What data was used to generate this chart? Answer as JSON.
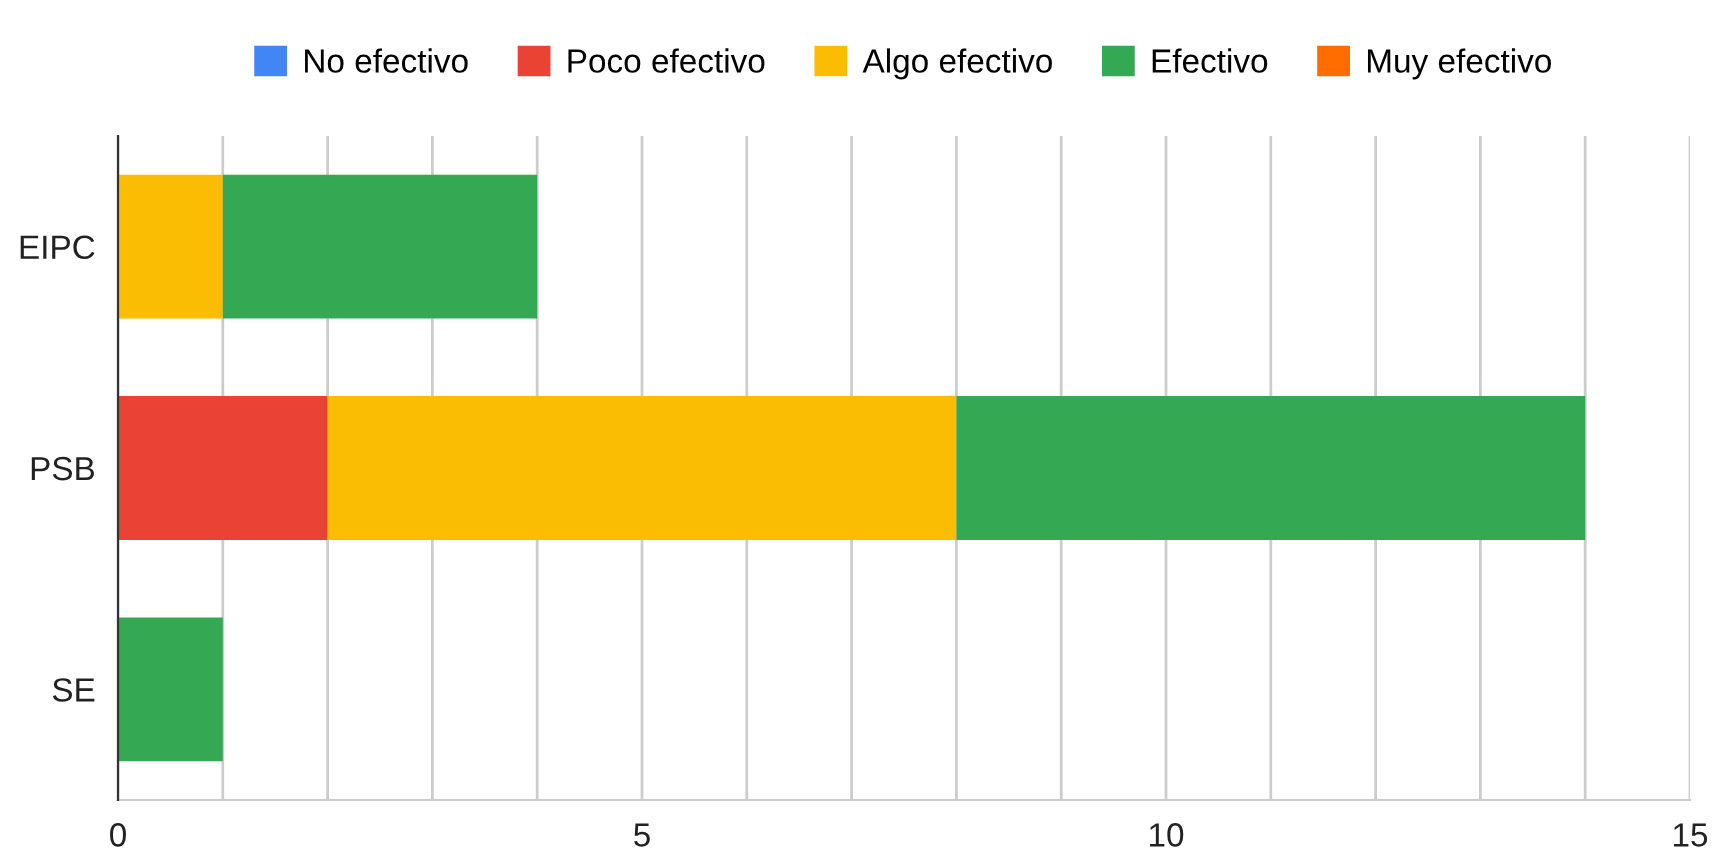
{
  "chart_data": {
    "type": "bar",
    "orientation": "horizontal",
    "stacked": true,
    "categories": [
      "EIPC",
      "PSB",
      "SE"
    ],
    "series": [
      {
        "name": "No efectivo",
        "color": "#4285f4",
        "values": [
          0,
          0,
          0
        ]
      },
      {
        "name": "Poco efectivo",
        "color": "#ea4335",
        "values": [
          0,
          2,
          0
        ]
      },
      {
        "name": "Algo efectivo",
        "color": "#fbbc04",
        "values": [
          1,
          6,
          0
        ]
      },
      {
        "name": "Efectivo",
        "color": "#34a853",
        "values": [
          3,
          6,
          1
        ]
      },
      {
        "name": "Muy efectivo",
        "color": "#ff6d01",
        "values": [
          0,
          0,
          0
        ]
      }
    ],
    "xlim": [
      0,
      15
    ],
    "xticks": [
      0,
      {
        "value": 1,
        "label": null
      },
      {
        "value": 2,
        "label": null
      },
      {
        "value": 3,
        "label": null
      },
      {
        "value": 4,
        "label": null
      },
      5,
      {
        "value": 6,
        "label": null
      },
      {
        "value": 7,
        "label": null
      },
      {
        "value": 8,
        "label": null
      },
      {
        "value": 9,
        "label": null
      },
      10,
      {
        "value": 11,
        "label": null
      },
      {
        "value": 12,
        "label": null
      },
      {
        "value": 13,
        "label": null
      },
      {
        "value": 14,
        "label": null
      },
      15
    ],
    "grid": "x",
    "legend": "top"
  }
}
